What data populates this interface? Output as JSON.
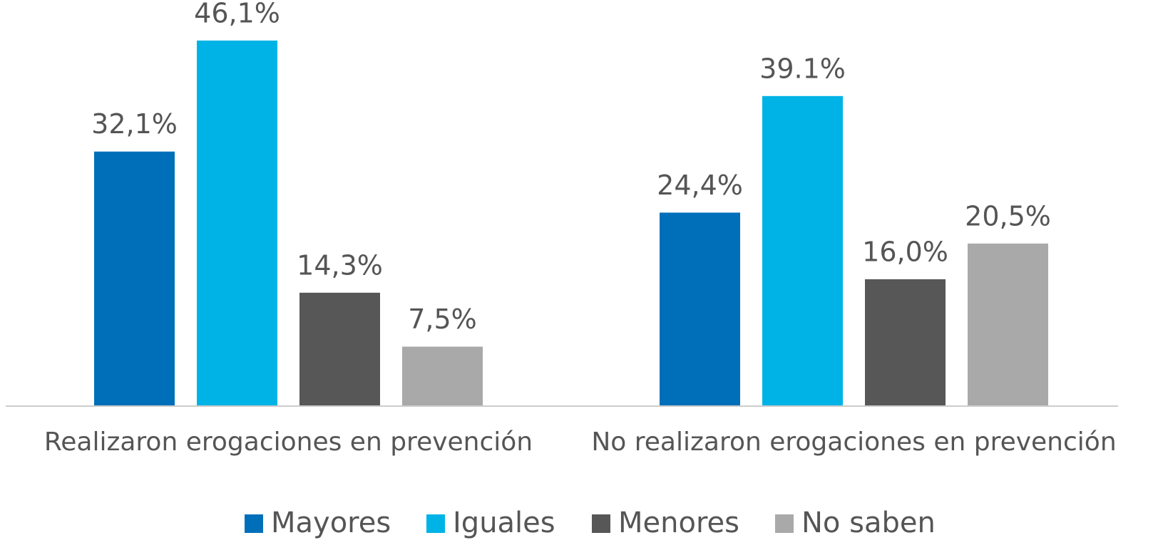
{
  "chart_data": {
    "type": "bar",
    "categories": [
      "Realizaron erogaciones en prevención",
      "No realizaron erogaciones en prevención"
    ],
    "series": [
      {
        "name": "Mayores",
        "color": "#006fba",
        "values": [
          32.1,
          24.4
        ],
        "value_labels": [
          "32,1%",
          "24,4%"
        ]
      },
      {
        "name": "Iguales",
        "color": "#00b3e6",
        "values": [
          46.1,
          39.1
        ],
        "value_labels": [
          "46,1%",
          "39.1%"
        ]
      },
      {
        "name": "Menores",
        "color": "#575757",
        "values": [
          14.3,
          16.0
        ],
        "value_labels": [
          "14,3%",
          "16,0%"
        ]
      },
      {
        "name": "No saben",
        "color": "#a9a9a9",
        "values": [
          7.5,
          20.5
        ],
        "value_labels": [
          "7,5%",
          "20,5%"
        ]
      }
    ]
  }
}
